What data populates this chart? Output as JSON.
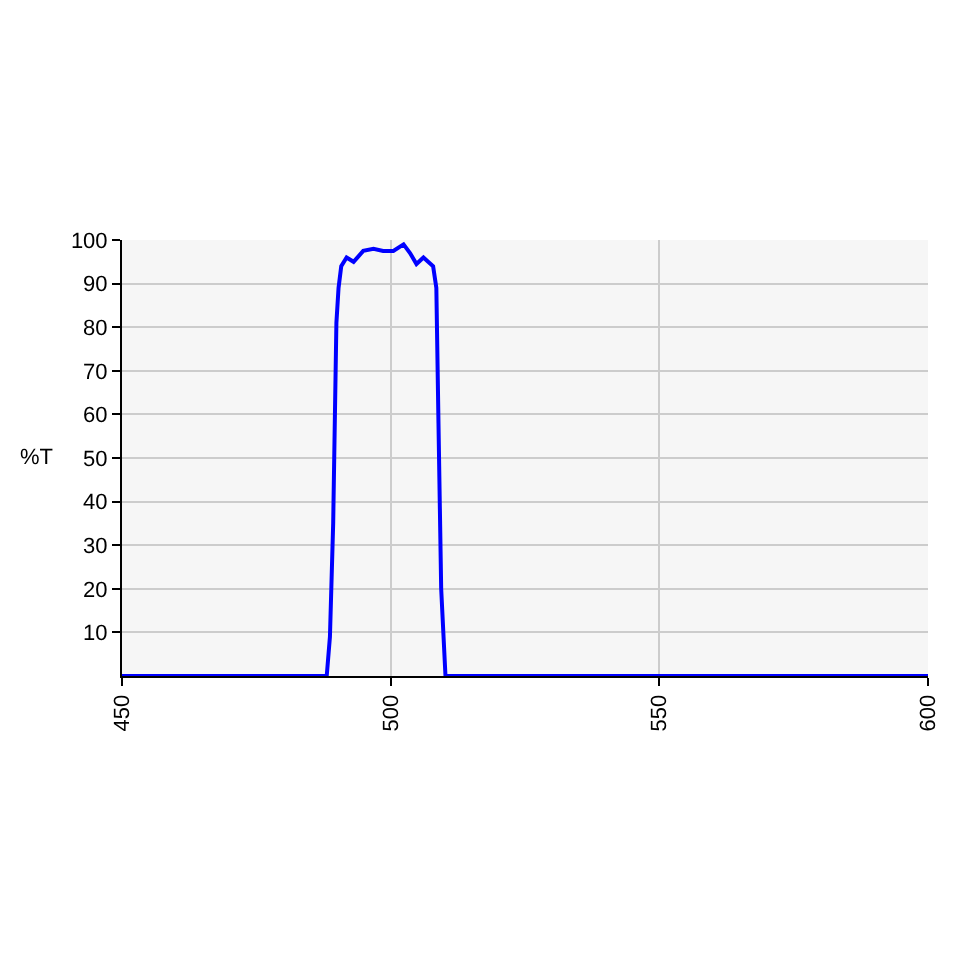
{
  "chart_data": {
    "type": "line",
    "ylabel": "%T",
    "x": [
      450,
      488.1,
      488.7,
      489.3,
      489.9,
      490.3,
      490.8,
      491.8,
      493.1,
      494.9,
      496.8,
      498.6,
      500.5,
      502.4,
      503.6,
      504.8,
      506.1,
      507.9,
      508.5,
      508.9,
      509.4,
      510.2,
      600
    ],
    "series": [
      {
        "color": "#0000ff",
        "values": [
          0,
          0,
          9,
          35,
          81,
          89,
          94,
          96,
          95,
          97.5,
          98,
          97.5,
          97.5,
          99,
          97,
          94.5,
          96,
          94,
          89,
          58,
          20,
          0,
          0
        ]
      }
    ],
    "xlim": [
      450,
      600
    ],
    "xticks": [
      450,
      500,
      550,
      600
    ],
    "ylim": [
      0,
      100
    ],
    "yticks": [
      10,
      20,
      30,
      40,
      50,
      60,
      70,
      80,
      90,
      100
    ],
    "grid": true,
    "line_style": "solid"
  }
}
